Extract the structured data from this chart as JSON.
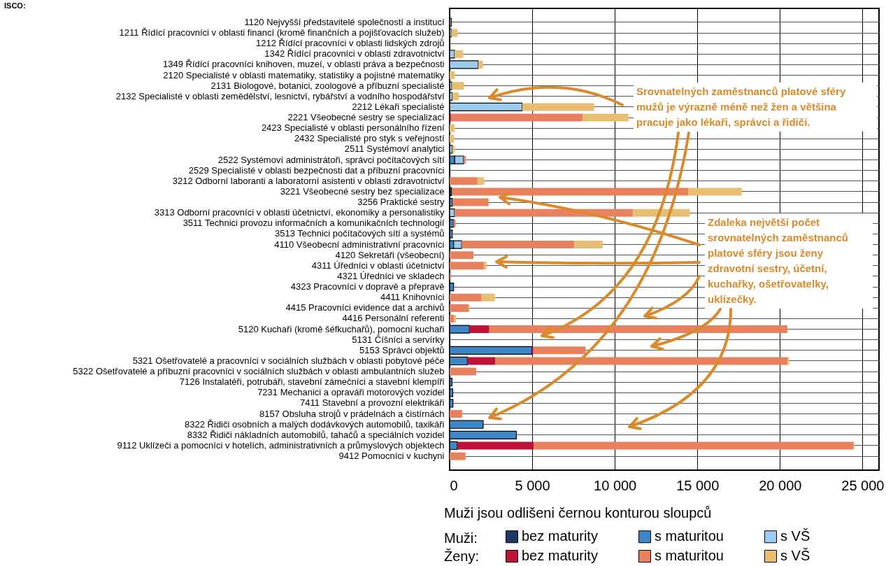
{
  "chart_data": {
    "type": "bar",
    "orientation": "horizontal",
    "stacked": true,
    "categories": [
      "1120 Nejvyšší představitelé společností a institucí",
      "1211 Řídící pracovníci v oblasti financí (kromě finančních a pojišťovacích služeb)",
      "1212 Řídící pracovníci v oblasti lidských zdrojů",
      "1342 Řídící pracovníci v oblasti zdravotnictví",
      "1349 Řídící pracovníci knihoven, muzeí, v oblasti práva a bezpečnosti",
      "2120 Specialisté v oblasti matematiky, statistiky a pojistné matematiky",
      "2131 Biologové, botanici, zoologové a příbuzní specialisté",
      "2132 Specialisté v oblasti zemědělství, lesnictví, rybářství a vodního hospodářství",
      "2212 Lékaři specialisté",
      "2221 Všeobecné sestry se specializací",
      "2423 Specialisté v oblasti personálního řízení",
      "2432 Specialisté pro styk s veřejností",
      "2511 Systémoví analytici",
      "2522 Systémoví administrátoři, správci počítačových sítí",
      "2529 Specialisté v oblasti bezpečnosti dat a příbuzní pracovníci",
      "3212 Odborní laboranti a laboratorní asistenti v oblasti zdravotnictví",
      "3221 Všeobecné sestry bez specializace",
      "3256 Praktické sestry",
      "3313 Odborní pracovníci v oblasti účetnictví, ekonomiky a personalistiky",
      "3511 Technici provozu informačních a komunikačních technologií",
      "3513 Technici počítačových sítí a systémů",
      "4110 Všeobecní administrativní pracovníci",
      "4120 Sekretáři (všeobecní)",
      "4311 Úředníci v oblasti účetnictví",
      "4321 Úředníci ve skladech",
      "4323 Pracovníci v dopravě a přepravě",
      "4411 Knihovníci",
      "4415 Pracovníci evidence dat a archivů",
      "4416 Personální referenti",
      "5120 Kuchaři (kromě šéfkuchařů), pomocní kuchaři",
      "5131 Číšníci a servírky",
      "5153 Správci objektů",
      "5321 Ošetřovatelé a pracovníci v sociálních službách v oblasti pobytové péče",
      "5322 Ošetřovatelé a příbuzní pracovníci v sociálních službách v oblasti ambulantních služeb",
      "7126 Instalatéři, potrubáři, stavební zámečníci a stavební klempíři",
      "7231 Mechanici a opraváři motorových vozidel",
      "7411 Stavební a provozní elektrikáři",
      "8157 Obsluha strojů v prádelnách a čistírnách",
      "8322 Řidiči osobních a malých dodávkových automobilů, taxikáři",
      "8332 Řidiči nákladních automobilů, tahačů a speciálních vozidel",
      "9112 Uklízeči a pomocníci v hotelích, administrativních a průmyslových objektech",
      "9412 Pomocníci v kuchyni"
    ],
    "series": [
      {
        "name": "bez maturity",
        "color": "#1f3864",
        "values": [
          null,
          null,
          null,
          null,
          null,
          null,
          null,
          null,
          null,
          null,
          null,
          null,
          null,
          null,
          null,
          null,
          130,
          null,
          null,
          null,
          null,
          null,
          null,
          null,
          null,
          null,
          null,
          null,
          null,
          null,
          null,
          null,
          null,
          null,
          null,
          null,
          null,
          null,
          null,
          null,
          null,
          null
        ]
      },
      {
        "name": "s maturitou",
        "color": "#3d87c8",
        "values": [
          null,
          null,
          null,
          null,
          null,
          null,
          null,
          null,
          null,
          null,
          null,
          null,
          null,
          310,
          null,
          null,
          null,
          170,
          null,
          230,
          170,
          240,
          null,
          null,
          null,
          240,
          null,
          null,
          null,
          1200,
          null,
          4980,
          1080,
          null,
          140,
          190,
          200,
          null,
          2030,
          4040,
          460,
          null
        ]
      },
      {
        "name": "s VŠ",
        "color": "#9ccbee",
        "values": [
          100,
          100,
          null,
          300,
          1730,
          null,
          130,
          160,
          4390,
          null,
          null,
          null,
          160,
          530,
          null,
          null,
          null,
          null,
          300,
          null,
          null,
          490,
          null,
          null,
          null,
          null,
          null,
          null,
          null,
          null,
          null,
          null,
          null,
          null,
          null,
          null,
          null,
          null,
          null,
          null,
          null,
          null
        ]
      },
      {
        "name": "bez maturity",
        "color": "#be1238",
        "values": [
          null,
          null,
          null,
          null,
          null,
          null,
          null,
          null,
          null,
          100,
          null,
          null,
          null,
          null,
          null,
          null,
          null,
          null,
          null,
          null,
          null,
          null,
          null,
          null,
          null,
          null,
          null,
          null,
          null,
          1200,
          null,
          90,
          1690,
          null,
          null,
          null,
          null,
          null,
          null,
          null,
          4640,
          null
        ]
      },
      {
        "name": "s maturitou",
        "color": "#e8825e",
        "values": [
          null,
          null,
          null,
          null,
          null,
          null,
          null,
          null,
          null,
          7970,
          null,
          null,
          null,
          140,
          null,
          1690,
          14310,
          2190,
          10790,
          130,
          40,
          6830,
          1440,
          2070,
          80,
          null,
          1930,
          1140,
          270,
          18050,
          null,
          3160,
          17690,
          1610,
          null,
          null,
          null,
          760,
          null,
          null,
          19360,
          960
        ]
      },
      {
        "name": "s VŠ",
        "color": "#e6bf72",
        "values": [
          null,
          380,
          null,
          510,
          290,
          310,
          740,
          400,
          4360,
          2760,
          310,
          270,
          150,
          null,
          null,
          400,
          3250,
          null,
          3450,
          null,
          null,
          1710,
          null,
          160,
          null,
          null,
          810,
          70,
          120,
          null,
          null,
          null,
          100,
          null,
          null,
          null,
          null,
          null,
          null,
          null,
          50,
          null
        ]
      }
    ],
    "xlim": [
      0,
      26000
    ],
    "xticks": [
      0,
      {
        "value": 5000,
        "label": "5 000"
      },
      {
        "value": 10000,
        "label": "10 000"
      },
      {
        "value": 15000,
        "label": "15 000"
      },
      {
        "value": 20000,
        "label": "20 000"
      },
      {
        "value": 25000,
        "label": "25 000"
      }
    ],
    "grid": true,
    "legend": "bottom",
    "annotations": [
      "ISCO:",
      "Srovnatelných zaměstnanců platové sféry mužů je výrazně méně než žen a většina pracuje jako lékaři, správci a řidiči.",
      "Zdaleka největší počet srovnatelných zaměstnanců platové sféry jsou ženy zdravotní sestry, účetní, kuchařky, ošetřovatelky, uklízečky.",
      "Muži jsou odlišeni černou konturou sloupců",
      "Muži:",
      "Ženy:"
    ]
  }
}
